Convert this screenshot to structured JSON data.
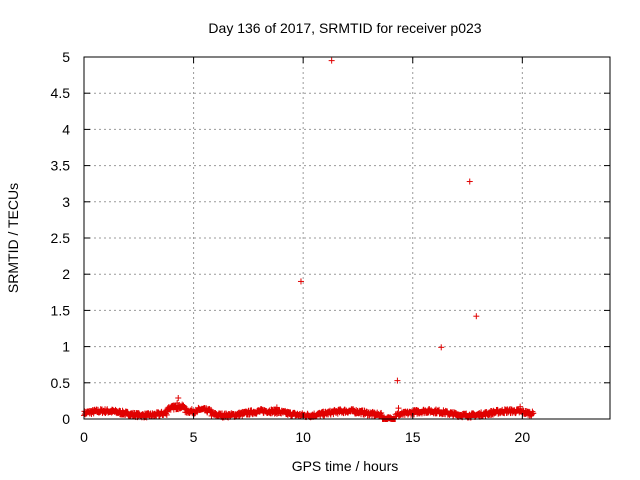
{
  "chart_data": {
    "type": "scatter",
    "title": "Day 136 of 2017, SRMTID for receiver p023",
    "xlabel": "GPS time / hours",
    "ylabel": "SRMTID / TECUs",
    "xlim": [
      0,
      24
    ],
    "ylim": [
      0,
      5
    ],
    "xticks": [
      0,
      5,
      10,
      15,
      20
    ],
    "yticks": [
      0,
      0.5,
      1,
      1.5,
      2,
      2.5,
      3,
      3.5,
      4,
      4.5,
      5
    ],
    "xtick_labels": [
      "0",
      "5",
      "10",
      "15",
      "20"
    ],
    "ytick_labels": [
      "0",
      "0.5",
      "1",
      "1.5",
      "2",
      "2.5",
      "3",
      "3.5",
      "4",
      "4.5",
      "5"
    ],
    "grid": true,
    "marker": "+",
    "color": "#e00000",
    "x_range_of_baseline": [
      0,
      20.5
    ],
    "baseline_level_approx": 0.08,
    "outliers": [
      {
        "x": 4.3,
        "y": 0.29
      },
      {
        "x": 4.25,
        "y": 0.22
      },
      {
        "x": 8.8,
        "y": 0.16
      },
      {
        "x": 9.9,
        "y": 1.9
      },
      {
        "x": 11.3,
        "y": 4.95
      },
      {
        "x": 14.3,
        "y": 0.53
      },
      {
        "x": 14.35,
        "y": 0.15
      },
      {
        "x": 16.3,
        "y": 0.99
      },
      {
        "x": 17.6,
        "y": 3.28
      },
      {
        "x": 17.9,
        "y": 1.42
      },
      {
        "x": 19.9,
        "y": 0.17
      }
    ]
  }
}
